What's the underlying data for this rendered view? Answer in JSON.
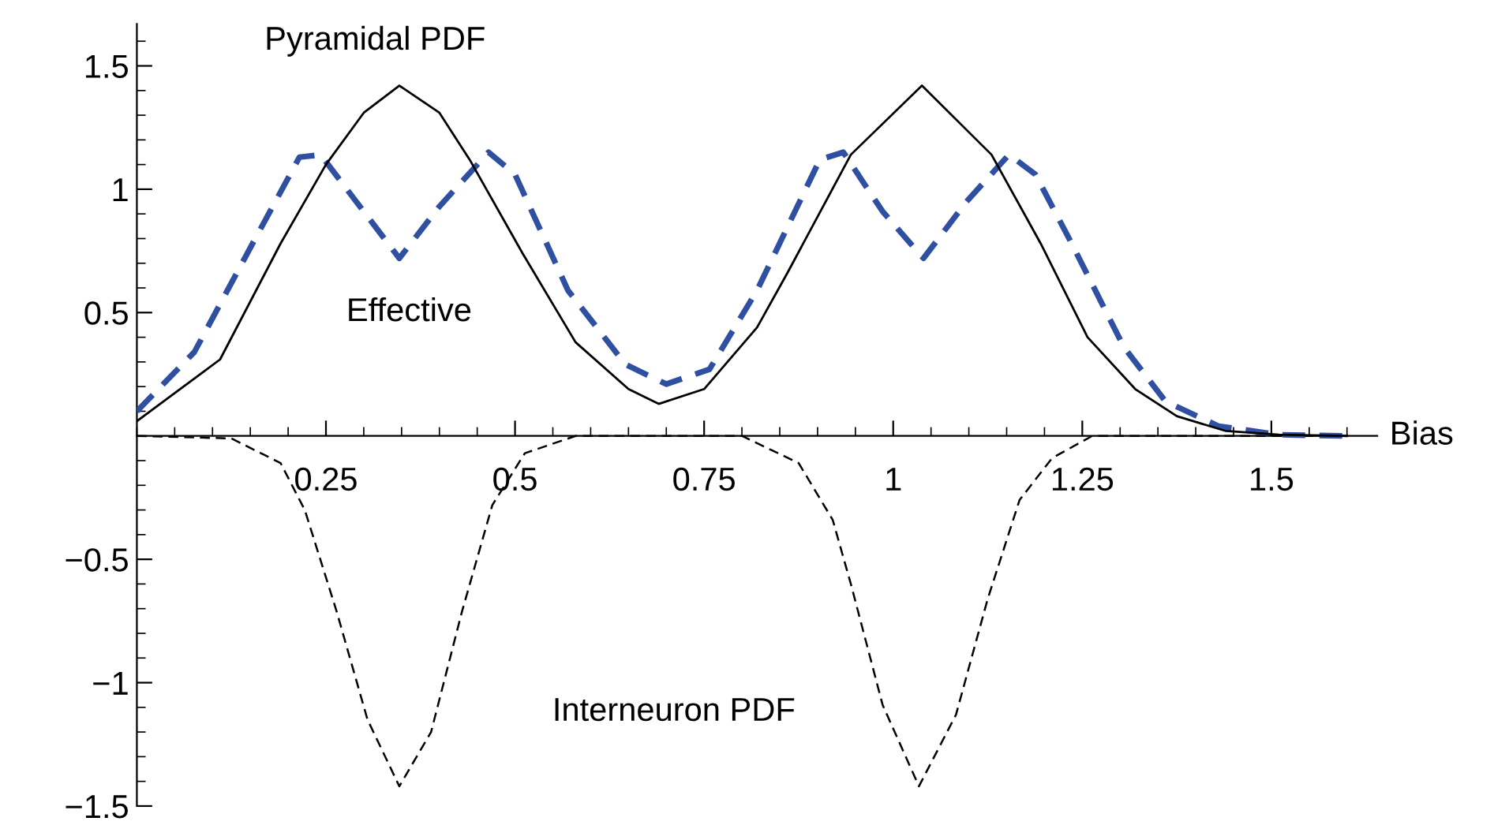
{
  "chart_data": {
    "type": "line",
    "xlabel": "Bias",
    "xlim": [
      0,
      1.64
    ],
    "ylim": [
      -1.5,
      1.67
    ],
    "xticks": [
      0.25,
      0.5,
      0.75,
      1,
      1.25,
      1.5
    ],
    "yticks": [
      {
        "value": -1.5,
        "label": "−1.5"
      },
      {
        "value": -1,
        "label": "−1"
      },
      {
        "value": -0.5,
        "label": "−0.5"
      },
      0.5,
      1,
      1.5
    ],
    "grid": false,
    "legend": false,
    "marker": "none",
    "series": [
      {
        "name": "Pyramidal PDF",
        "color": "#000000",
        "line_style": "solid",
        "x": [
          0,
          0.11,
          0.19,
          0.25,
          0.3,
          0.347,
          0.4,
          0.44,
          0.51,
          0.58,
          0.65,
          0.69,
          0.75,
          0.82,
          0.86,
          0.944,
          1.038,
          1.13,
          1.195,
          1.257,
          1.32,
          1.375,
          1.44,
          1.51,
          1.6
        ],
        "values": [
          0.06,
          0.31,
          0.78,
          1.1,
          1.31,
          1.42,
          1.31,
          1.12,
          0.74,
          0.38,
          0.19,
          0.13,
          0.19,
          0.44,
          0.66,
          1.14,
          1.42,
          1.14,
          0.78,
          0.4,
          0.19,
          0.08,
          0.02,
          0.005,
          0
        ]
      },
      {
        "name": "Effective",
        "color": "#2f4fa0",
        "line_style": "dashed",
        "x": [
          0,
          0.076,
          0.153,
          0.215,
          0.243,
          0.29,
          0.347,
          0.4,
          0.465,
          0.5,
          0.57,
          0.646,
          0.7,
          0.757,
          0.82,
          0.903,
          0.934,
          0.986,
          1.04,
          1.097,
          1.153,
          1.188,
          1.236,
          1.305,
          1.36,
          1.43,
          1.51,
          1.6
        ],
        "values": [
          0.1,
          0.34,
          0.78,
          1.13,
          1.14,
          0.95,
          0.72,
          0.93,
          1.15,
          1.06,
          0.59,
          0.29,
          0.21,
          0.27,
          0.59,
          1.12,
          1.15,
          0.91,
          0.72,
          0.95,
          1.14,
          1.06,
          0.78,
          0.36,
          0.14,
          0.04,
          0.005,
          0
        ]
      },
      {
        "name": "Interneuron PDF",
        "color": "#000000",
        "line_style": "dotted",
        "x": [
          0,
          0.125,
          0.19,
          0.222,
          0.264,
          0.305,
          0.347,
          0.389,
          0.43,
          0.47,
          0.513,
          0.58,
          0.8,
          0.875,
          0.92,
          0.944,
          0.986,
          1.034,
          1.083,
          1.125,
          1.167,
          1.21,
          1.263,
          1.6
        ],
        "values": [
          0,
          -0.01,
          -0.11,
          -0.3,
          -0.71,
          -1.15,
          -1.42,
          -1.2,
          -0.71,
          -0.28,
          -0.07,
          0,
          0,
          -0.11,
          -0.34,
          -0.6,
          -1.09,
          -1.42,
          -1.13,
          -0.66,
          -0.26,
          -0.09,
          0,
          0
        ]
      }
    ]
  }
}
